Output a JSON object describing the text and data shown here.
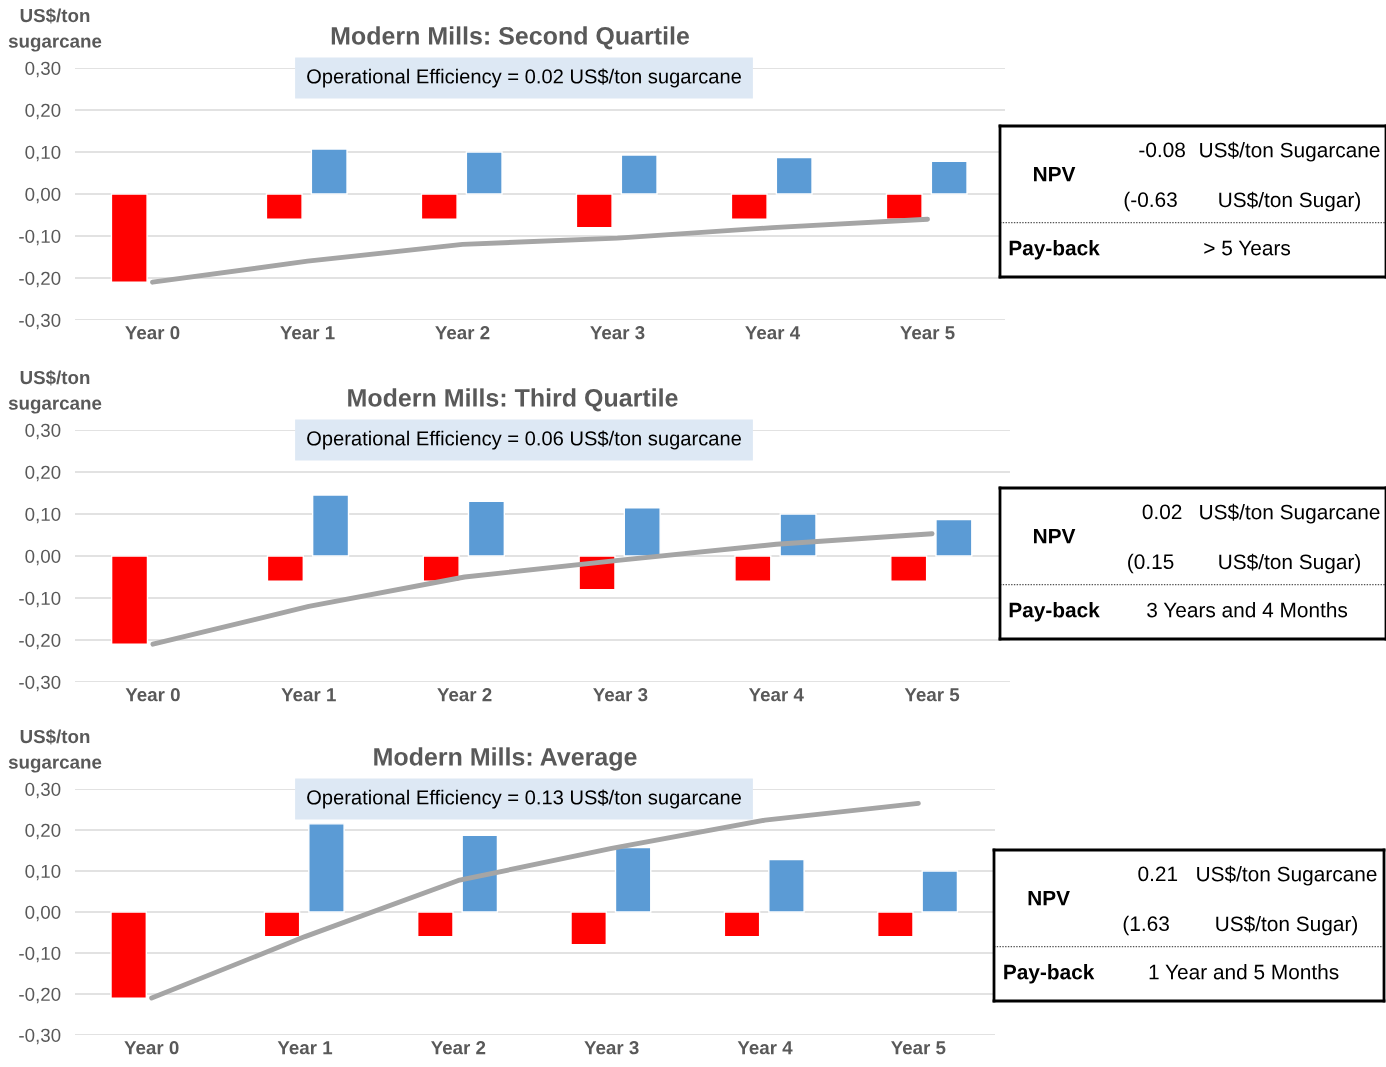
{
  "chart_data": [
    {
      "type": "bar",
      "title": "Modern Mills: Second Quartile",
      "ylabel": "US$/ton sugarcane",
      "categories": [
        "Year 0",
        "Year 1",
        "Year 2",
        "Year 3",
        "Year 4",
        "Year 5"
      ],
      "series": [
        {
          "color": "#ff0000",
          "values": [
            -0.21,
            -0.06,
            -0.06,
            -0.08,
            -0.06,
            -0.06
          ]
        },
        {
          "color": "#5b9bd5",
          "values": [
            null,
            0.107,
            0.1,
            0.093,
            0.087,
            0.078
          ]
        },
        {
          "type": "line",
          "color": "#a5a5a5",
          "values": [
            -0.21,
            -0.16,
            -0.12,
            -0.105,
            -0.08,
            -0.06
          ]
        }
      ],
      "ylim": [
        -0.3,
        0.3
      ],
      "yticks": [
        {
          "value": -0.3,
          "label": "-0,30"
        },
        {
          "value": -0.2,
          "label": "-0,20"
        },
        {
          "value": -0.1,
          "label": "-0,10"
        },
        {
          "value": 0,
          "label": "0,00"
        },
        {
          "value": 0.1,
          "label": "0,10"
        },
        {
          "value": 0.2,
          "label": "0,20"
        },
        {
          "value": 0.3,
          "label": "0,30"
        }
      ],
      "grid": "y",
      "annotations": [
        "Operational Efficiency = 0.02 US$/ton sugarcane",
        "NPV",
        "-0.08",
        "US$/ton Sugarcane",
        "(-0.63",
        "US$/ton Sugar)",
        "Pay-back",
        "> 5 Years"
      ]
    },
    {
      "type": "bar",
      "title": "Modern Mills: Third Quartile",
      "ylabel": "US$/ton sugarcane",
      "categories": [
        "Year 0",
        "Year 1",
        "Year 2",
        "Year 3",
        "Year 4",
        "Year 5"
      ],
      "series": [
        {
          "color": "#ff0000",
          "values": [
            -0.21,
            -0.06,
            -0.06,
            -0.08,
            -0.06,
            -0.06
          ]
        },
        {
          "color": "#5b9bd5",
          "values": [
            null,
            0.145,
            0.13,
            0.115,
            0.1,
            0.087
          ]
        },
        {
          "type": "line",
          "color": "#a5a5a5",
          "values": [
            -0.21,
            -0.12,
            -0.05,
            -0.01,
            0.028,
            0.053
          ]
        }
      ],
      "ylim": [
        -0.3,
        0.3
      ],
      "yticks": [
        {
          "value": -0.3,
          "label": "-0,30"
        },
        {
          "value": -0.2,
          "label": "-0,20"
        },
        {
          "value": -0.1,
          "label": "-0,10"
        },
        {
          "value": 0,
          "label": "0,00"
        },
        {
          "value": 0.1,
          "label": "0,10"
        },
        {
          "value": 0.2,
          "label": "0,20"
        },
        {
          "value": 0.3,
          "label": "0,30"
        }
      ],
      "grid": "y",
      "annotations": [
        "Operational Efficiency = 0.06 US$/ton sugarcane",
        "NPV",
        "0.02",
        "US$/ton Sugarcane",
        "(0.15",
        "US$/ton Sugar)",
        "Pay-back",
        "3 Years and 4 Months"
      ]
    },
    {
      "type": "bar",
      "title": "Modern Mills: Average",
      "ylabel": "US$/ton sugarcane",
      "categories": [
        "Year 0",
        "Year 1",
        "Year 2",
        "Year 3",
        "Year 4",
        "Year 5"
      ],
      "series": [
        {
          "color": "#ff0000",
          "values": [
            -0.21,
            -0.06,
            -0.06,
            -0.08,
            -0.06,
            -0.06
          ]
        },
        {
          "color": "#5b9bd5",
          "values": [
            null,
            0.215,
            0.187,
            0.157,
            0.128,
            0.1
          ]
        },
        {
          "type": "line",
          "color": "#a5a5a5",
          "values": [
            -0.21,
            -0.06,
            0.077,
            0.155,
            0.224,
            0.265
          ]
        }
      ],
      "ylim": [
        -0.3,
        0.3
      ],
      "yticks": [
        {
          "value": -0.3,
          "label": "-0,30"
        },
        {
          "value": -0.2,
          "label": "-0,20"
        },
        {
          "value": -0.1,
          "label": "-0,10"
        },
        {
          "value": 0,
          "label": "0,00"
        },
        {
          "value": 0.1,
          "label": "0,10"
        },
        {
          "value": 0.2,
          "label": "0,20"
        },
        {
          "value": 0.3,
          "label": "0,30"
        }
      ],
      "grid": "y",
      "annotations": [
        "Operational Efficiency = 0.13 US$/ton sugarcane",
        "NPV",
        "0.21",
        "US$/ton Sugarcane",
        "(1.63",
        "US$/ton Sugar)",
        "Pay-back",
        "1 Year and 5 Months"
      ]
    }
  ]
}
